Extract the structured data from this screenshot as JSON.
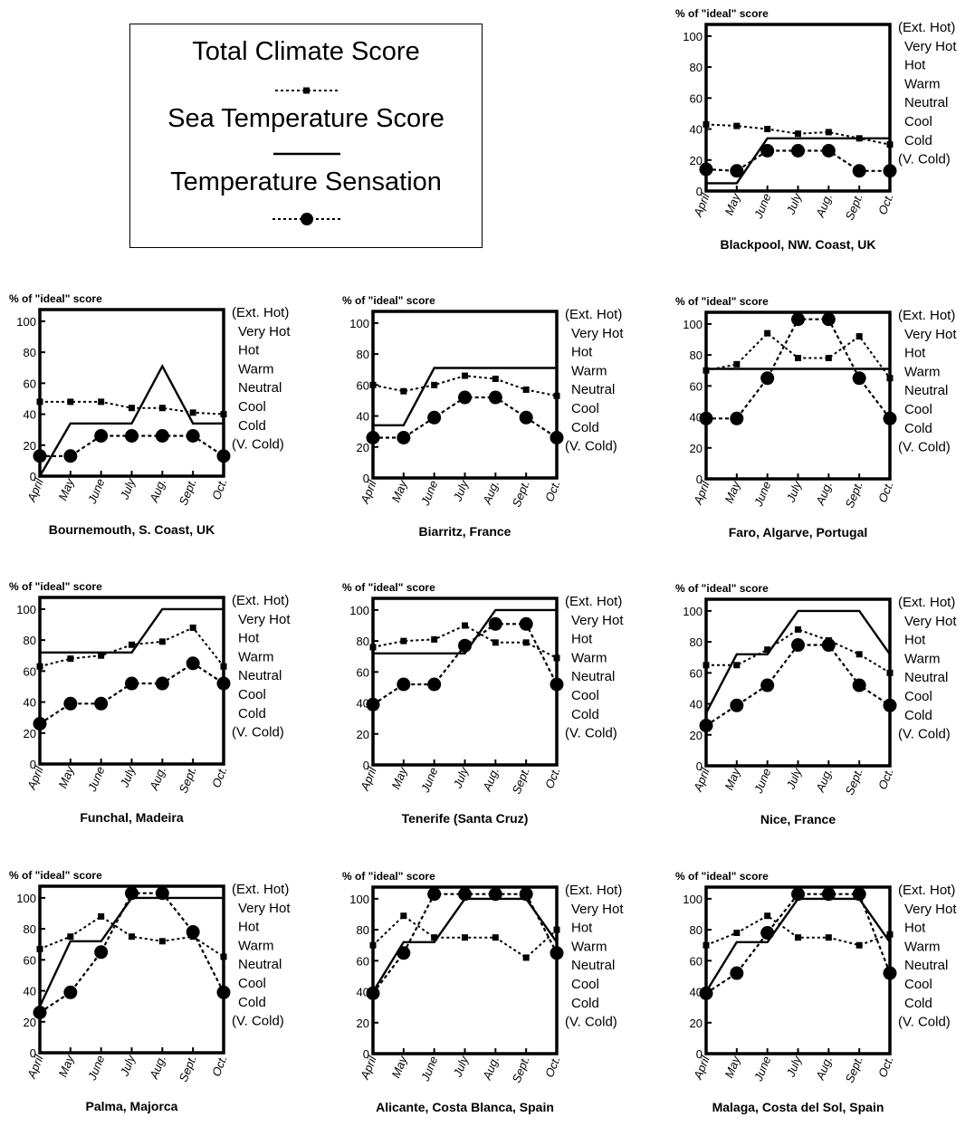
{
  "legend": {
    "total_climate_label": "Total Climate Score",
    "sea_temperature_label": "Sea Temperature Score",
    "temperature_sensation_label": "Temperature Sensation"
  },
  "chart_data": [
    {
      "type": "line",
      "title": "Blackpool, NW. Coast, UK",
      "ylabel": "% of \"ideal\" score",
      "ylim": [
        0,
        100
      ],
      "yticks": [
        "0",
        "20",
        "40",
        "60",
        "80",
        "100"
      ],
      "categories": [
        "April",
        "May",
        "June",
        "July",
        "Aug.",
        "Sept.",
        "Oct."
      ],
      "sensation_scale": [
        "(Ext. Hot)",
        "Very Hot",
        "Hot",
        "Warm",
        "Neutral",
        "Cool",
        "Cold",
        "(V. Cold)"
      ],
      "series": [
        {
          "name": "Total Climate Score",
          "values": [
            43,
            42,
            40,
            37,
            38,
            34,
            30
          ]
        },
        {
          "name": "Sea Temperature Score",
          "values": [
            5,
            5,
            34,
            34,
            34,
            34,
            34
          ]
        },
        {
          "name": "Temperature Sensation",
          "values": [
            14,
            13,
            26,
            26,
            26,
            13,
            13
          ]
        }
      ]
    },
    {
      "type": "line",
      "title": "Bournemouth, S. Coast, UK",
      "ylabel": "% of \"ideal\" score",
      "ylim": [
        0,
        100
      ],
      "yticks": [
        "0",
        "20",
        "40",
        "60",
        "80",
        "100"
      ],
      "categories": [
        "April",
        "May",
        "June",
        "July",
        "Aug.",
        "Sept.",
        "Oct."
      ],
      "sensation_scale": [
        "(Ext. Hot)",
        "Very Hot",
        "Hot",
        "Warm",
        "Neutral",
        "Cool",
        "Cold",
        "(V. Cold)"
      ],
      "series": [
        {
          "name": "Total Climate Score",
          "values": [
            48,
            48,
            48,
            44,
            44,
            41,
            40
          ]
        },
        {
          "name": "Sea Temperature Score",
          "values": [
            0,
            34,
            34,
            34,
            71,
            34,
            34
          ]
        },
        {
          "name": "Temperature Sensation",
          "values": [
            13,
            13,
            26,
            26,
            26,
            26,
            13
          ]
        }
      ]
    },
    {
      "type": "line",
      "title": "Biarritz, France",
      "ylabel": "% of \"ideal\" score",
      "ylim": [
        0,
        100
      ],
      "yticks": [
        "0",
        "20",
        "40",
        "60",
        "80",
        "100"
      ],
      "categories": [
        "April",
        "May",
        "June",
        "July",
        "Aug.",
        "Sept.",
        "Oct."
      ],
      "sensation_scale": [
        "(Ext. Hot)",
        "Very Hot",
        "Hot",
        "Warm",
        "Neutral",
        "Cool",
        "Cold",
        "(V. Cold)"
      ],
      "series": [
        {
          "name": "Total Climate Score",
          "values": [
            60,
            56,
            60,
            66,
            64,
            57,
            53
          ]
        },
        {
          "name": "Sea Temperature Score",
          "values": [
            34,
            34,
            71,
            71,
            71,
            71,
            71
          ]
        },
        {
          "name": "Temperature Sensation",
          "values": [
            26,
            26,
            39,
            52,
            52,
            39,
            26
          ]
        }
      ]
    },
    {
      "type": "line",
      "title": "Faro, Algarve, Portugal",
      "ylabel": "% of \"ideal\" score",
      "ylim": [
        0,
        100
      ],
      "yticks": [
        "0",
        "20",
        "40",
        "60",
        "80",
        "100"
      ],
      "categories": [
        "April",
        "May",
        "June",
        "July",
        "Aug.",
        "Sept.",
        "Oct."
      ],
      "sensation_scale": [
        "(Ext. Hot)",
        "Very Hot",
        "Hot",
        "Warm",
        "Neutral",
        "Cool",
        "Cold",
        "(V. Cold)"
      ],
      "series": [
        {
          "name": "Total Climate Score",
          "values": [
            70,
            74,
            94,
            78,
            78,
            92,
            65
          ]
        },
        {
          "name": "Sea Temperature Score",
          "values": [
            71,
            71,
            71,
            71,
            71,
            71,
            71
          ]
        },
        {
          "name": "Temperature Sensation",
          "values": [
            39,
            39,
            65,
            103,
            103,
            65,
            39
          ]
        }
      ]
    },
    {
      "type": "line",
      "title": "Funchal, Madeira",
      "ylabel": "% of \"ideal\" score",
      "ylim": [
        0,
        100
      ],
      "yticks": [
        "0",
        "20",
        "40",
        "60",
        "80",
        "100"
      ],
      "categories": [
        "April",
        "May",
        "June",
        "July",
        "Aug.",
        "Sept.",
        "Oct."
      ],
      "sensation_scale": [
        "(Ext. Hot)",
        "Very Hot",
        "Hot",
        "Warm",
        "Neutral",
        "Cool",
        "Cold",
        "(V. Cold)"
      ],
      "series": [
        {
          "name": "Total Climate Score",
          "values": [
            63,
            68,
            70,
            77,
            79,
            88,
            63
          ]
        },
        {
          "name": "Sea Temperature Score",
          "values": [
            72,
            72,
            72,
            72,
            100,
            100,
            100
          ]
        },
        {
          "name": "Temperature Sensation",
          "values": [
            26,
            39,
            39,
            52,
            52,
            65,
            52
          ]
        }
      ]
    },
    {
      "type": "line",
      "title": "Tenerife (Santa Cruz)",
      "ylabel": "% of \"ideal\" score",
      "ylim": [
        0,
        100
      ],
      "yticks": [
        "0",
        "20",
        "40",
        "60",
        "80",
        "100"
      ],
      "categories": [
        "April",
        "May",
        "June",
        "July",
        "Aug.",
        "Sept.",
        "Oct."
      ],
      "sensation_scale": [
        "(Ext. Hot)",
        "Very Hot",
        "Hot",
        "Warm",
        "Neutral",
        "Cool",
        "Cold",
        "(V. Cold)"
      ],
      "series": [
        {
          "name": "Total Climate Score",
          "values": [
            76,
            80,
            81,
            90,
            79,
            79,
            69
          ]
        },
        {
          "name": "Sea Temperature Score",
          "values": [
            72,
            72,
            72,
            72,
            100,
            100,
            100
          ]
        },
        {
          "name": "Temperature Sensation",
          "values": [
            39,
            52,
            52,
            77,
            91,
            91,
            52
          ]
        }
      ]
    },
    {
      "type": "line",
      "title": "Nice, France",
      "ylabel": "% of \"ideal\" score",
      "ylim": [
        0,
        100
      ],
      "yticks": [
        "0",
        "20",
        "40",
        "60",
        "80",
        "100"
      ],
      "categories": [
        "April",
        "May",
        "June",
        "July",
        "Aug.",
        "Sept.",
        "Oct."
      ],
      "sensation_scale": [
        "(Ext. Hot)",
        "Very Hot",
        "Hot",
        "Warm",
        "Neutral",
        "Cool",
        "Cold",
        "(V. Cold)"
      ],
      "series": [
        {
          "name": "Total Climate Score",
          "values": [
            65,
            65,
            75,
            88,
            81,
            72,
            60
          ]
        },
        {
          "name": "Sea Temperature Score",
          "values": [
            34,
            72,
            72,
            100,
            100,
            100,
            72
          ]
        },
        {
          "name": "Temperature Sensation",
          "values": [
            26,
            39,
            52,
            78,
            78,
            52,
            39
          ]
        }
      ]
    },
    {
      "type": "line",
      "title": "Palma, Majorca",
      "ylabel": "% of \"ideal\" score",
      "ylim": [
        0,
        100
      ],
      "yticks": [
        "0",
        "20",
        "40",
        "60",
        "80",
        "100"
      ],
      "categories": [
        "April",
        "May",
        "June",
        "July",
        "Aug.",
        "Sept.",
        "Oct."
      ],
      "sensation_scale": [
        "(Ext. Hot)",
        "Very Hot",
        "Hot",
        "Warm",
        "Neutral",
        "Cool",
        "Cold",
        "(V. Cold)"
      ],
      "series": [
        {
          "name": "Total Climate Score",
          "values": [
            67,
            75,
            88,
            75,
            72,
            75,
            62
          ]
        },
        {
          "name": "Sea Temperature Score",
          "values": [
            30,
            72,
            72,
            100,
            100,
            100,
            100
          ]
        },
        {
          "name": "Temperature Sensation",
          "values": [
            26,
            39,
            65,
            103,
            103,
            78,
            39
          ]
        }
      ]
    },
    {
      "type": "line",
      "title": "Alicante, Costa Blanca, Spain",
      "ylabel": "% of \"ideal\" score",
      "ylim": [
        0,
        100
      ],
      "yticks": [
        "0",
        "20",
        "40",
        "60",
        "80",
        "100"
      ],
      "categories": [
        "April",
        "May",
        "June",
        "July",
        "Aug.",
        "Sept.",
        "Oct."
      ],
      "sensation_scale": [
        "(Ext. Hot)",
        "Very Hot",
        "Hot",
        "Warm",
        "Neutral",
        "Cool",
        "Cold",
        "(V. Cold)"
      ],
      "series": [
        {
          "name": "Total Climate Score",
          "values": [
            70,
            89,
            75,
            75,
            75,
            62,
            80
          ]
        },
        {
          "name": "Sea Temperature Score",
          "values": [
            40,
            72,
            72,
            100,
            100,
            100,
            72
          ]
        },
        {
          "name": "Temperature Sensation",
          "values": [
            39,
            65,
            103,
            103,
            103,
            103,
            65
          ]
        }
      ]
    },
    {
      "type": "line",
      "title": "Malaga, Costa del Sol, Spain",
      "ylabel": "% of \"ideal\" score",
      "ylim": [
        0,
        100
      ],
      "yticks": [
        "0",
        "20",
        "40",
        "60",
        "80",
        "100"
      ],
      "categories": [
        "April",
        "May",
        "June",
        "July",
        "Aug.",
        "Sept.",
        "Oct."
      ],
      "sensation_scale": [
        "(Ext. Hot)",
        "Very Hot",
        "Hot",
        "Warm",
        "Neutral",
        "Cool",
        "Cold",
        "(V. Cold)"
      ],
      "series": [
        {
          "name": "Total Climate Score",
          "values": [
            70,
            78,
            89,
            75,
            75,
            70,
            77
          ]
        },
        {
          "name": "Sea Temperature Score",
          "values": [
            40,
            72,
            72,
            100,
            100,
            100,
            72
          ]
        },
        {
          "name": "Temperature Sensation",
          "values": [
            39,
            52,
            78,
            103,
            103,
            103,
            52
          ]
        }
      ]
    }
  ]
}
